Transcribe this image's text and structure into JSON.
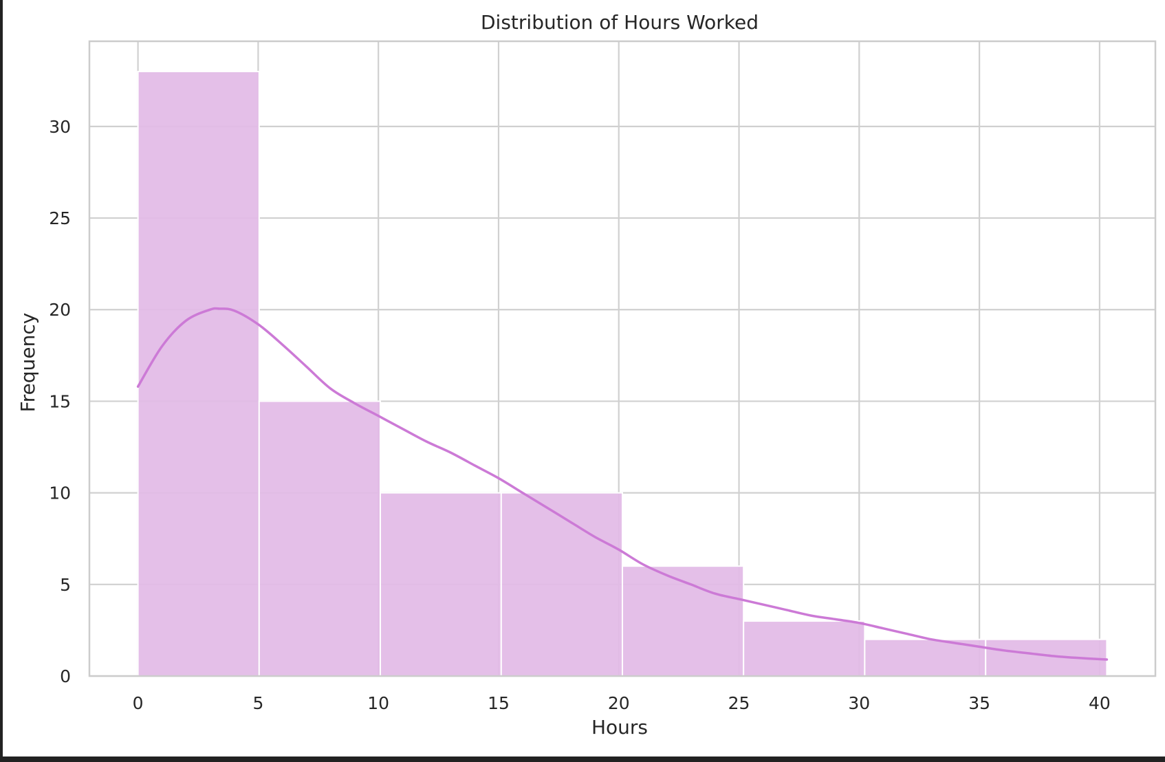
{
  "chart_data": {
    "type": "histogram",
    "title": "Distribution of Hours Worked",
    "xlabel": "Hours",
    "ylabel": "Frequency",
    "xlim": [
      -2.02,
      42.32
    ],
    "ylim": [
      0,
      34.65
    ],
    "x_ticks": [
      0,
      5,
      10,
      15,
      20,
      25,
      30,
      35,
      40
    ],
    "y_ticks": [
      0,
      5,
      10,
      15,
      20,
      25,
      30
    ],
    "grid": true,
    "legend": "none",
    "bins": [
      {
        "x0": 0.0,
        "x1": 5.04,
        "count": 33
      },
      {
        "x0": 5.04,
        "x1": 10.08,
        "count": 15
      },
      {
        "x0": 10.08,
        "x1": 15.11,
        "count": 10
      },
      {
        "x0": 15.11,
        "x1": 20.15,
        "count": 10
      },
      {
        "x0": 20.15,
        "x1": 25.19,
        "count": 6
      },
      {
        "x0": 25.19,
        "x1": 30.23,
        "count": 3
      },
      {
        "x0": 30.23,
        "x1": 35.26,
        "count": 2
      },
      {
        "x0": 35.26,
        "x1": 40.3,
        "count": 2
      }
    ],
    "kde": {
      "x": [
        0,
        1,
        2,
        3,
        3.4,
        4,
        5,
        6,
        7,
        8,
        9,
        10,
        11,
        12,
        13,
        14,
        15,
        16,
        17,
        18,
        19,
        20,
        21,
        22,
        23,
        24,
        25,
        26,
        27,
        28,
        29,
        30,
        31,
        32,
        33,
        34,
        35,
        36,
        37,
        38,
        39,
        40.3
      ],
      "y": [
        15.8,
        18.0,
        19.4,
        20.0,
        20.05,
        19.95,
        19.2,
        18.1,
        16.9,
        15.7,
        14.9,
        14.2,
        13.5,
        12.8,
        12.2,
        11.5,
        10.8,
        10.0,
        9.2,
        8.4,
        7.6,
        6.9,
        6.1,
        5.5,
        5.0,
        4.5,
        4.2,
        3.9,
        3.6,
        3.3,
        3.1,
        2.9,
        2.6,
        2.3,
        2.0,
        1.8,
        1.6,
        1.4,
        1.25,
        1.1,
        1.0,
        0.9
      ]
    },
    "colors": {
      "bar_fill": "#e2bae6",
      "bar_edge": "#ffffff",
      "kde_line": "#cc7ad6",
      "grid": "#d0d0d0",
      "axes_edge": "#cccccc"
    }
  }
}
